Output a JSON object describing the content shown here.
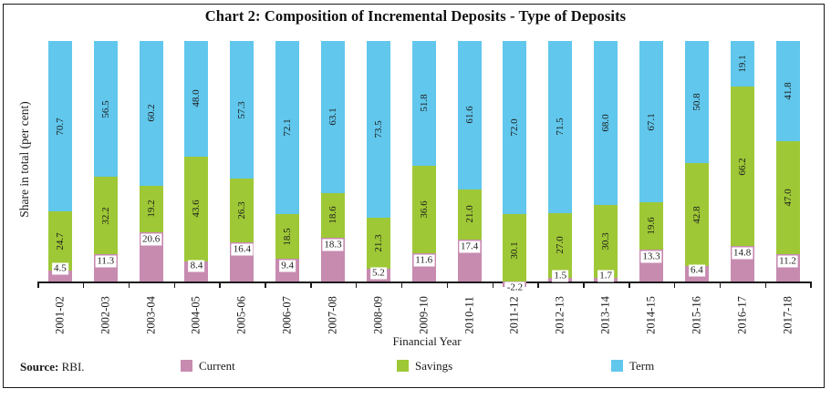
{
  "figure": {
    "title": "Chart 2: Composition of Incremental Deposits - Type of Deposits",
    "source_label": "Source:",
    "source_value": "RBI."
  },
  "chart_data": {
    "type": "bar",
    "stacked": true,
    "title": "Chart 2: Composition of Incremental Deposits - Type of Deposits",
    "xlabel": "Financial Year",
    "ylabel": "Share in total (per cent)",
    "ylim": [
      -5,
      105
    ],
    "grid": false,
    "legend_position": "bottom",
    "y_axis_ticks_visible": false,
    "categories": [
      "2001-02",
      "2002-03",
      "2003-04",
      "2004-05",
      "2005-06",
      "2006-07",
      "2007-08",
      "2008-09",
      "2009-10",
      "2010-11",
      "2011-12",
      "2012-13",
      "2013-14",
      "2014-15",
      "2015-16",
      "2016-17",
      "2017-18"
    ],
    "series": [
      {
        "name": "Current",
        "color": "#C78BB0",
        "values": [
          4.5,
          11.3,
          20.6,
          8.4,
          16.4,
          9.4,
          18.3,
          5.2,
          11.6,
          17.4,
          -2.2,
          1.5,
          1.7,
          13.3,
          6.4,
          14.8,
          11.2
        ]
      },
      {
        "name": "Savings",
        "color": "#9EC836",
        "values": [
          24.7,
          32.2,
          19.2,
          43.6,
          26.3,
          18.5,
          18.6,
          21.3,
          36.6,
          21.0,
          30.1,
          27.0,
          30.3,
          19.6,
          42.8,
          66.2,
          47.0
        ]
      },
      {
        "name": "Term",
        "color": "#61C7EC",
        "values": [
          70.7,
          56.5,
          60.2,
          48.0,
          57.3,
          72.1,
          63.1,
          73.5,
          51.8,
          61.6,
          72.0,
          71.5,
          68.0,
          67.1,
          50.8,
          19.1,
          41.8
        ]
      }
    ]
  }
}
